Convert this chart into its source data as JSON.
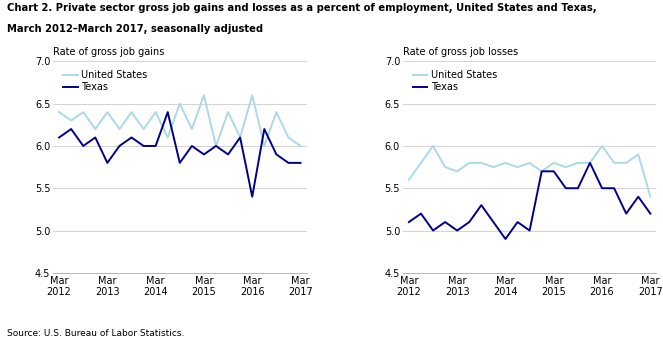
{
  "title_line1": "Chart 2. Private sector gross job gains and losses as a percent of employment, United States and Texas,",
  "title_line2": "March 2012–March 2017, seasonally adjusted",
  "source": "Source: U.S. Bureau of Labor Statistics.",
  "gains_us": [
    6.4,
    6.3,
    6.4,
    6.2,
    6.4,
    6.2,
    6.4,
    6.2,
    6.4,
    6.1,
    6.5,
    6.2,
    6.6,
    6.0,
    6.4,
    6.1,
    6.6,
    6.0,
    6.4,
    6.1,
    6.0
  ],
  "gains_tx": [
    6.1,
    6.2,
    6.0,
    6.1,
    5.8,
    6.0,
    6.1,
    6.0,
    6.0,
    6.4,
    5.8,
    6.0,
    5.9,
    6.0,
    5.9,
    6.1,
    5.4,
    6.2,
    5.9,
    5.8,
    5.8
  ],
  "losses_us": [
    5.6,
    5.8,
    6.0,
    5.75,
    5.7,
    5.8,
    5.8,
    5.75,
    5.8,
    5.75,
    5.8,
    5.7,
    5.8,
    5.75,
    5.8,
    5.8,
    6.0,
    5.8,
    5.8,
    5.9,
    5.4
  ],
  "losses_tx": [
    5.1,
    5.2,
    5.0,
    5.1,
    5.0,
    5.1,
    5.3,
    5.1,
    4.9,
    5.1,
    5.0,
    5.7,
    5.7,
    5.5,
    5.5,
    5.8,
    5.5,
    5.5,
    5.2,
    5.4,
    5.2
  ],
  "x_labels": [
    "Mar\n2012",
    "Mar\n2013",
    "Mar\n2014",
    "Mar\n2015",
    "Mar\n2016",
    "Mar\n2017"
  ],
  "x_tick_positions": [
    0,
    4,
    8,
    12,
    16,
    20
  ],
  "ylabel_gains": "Rate of gross job gains",
  "ylabel_losses": "Rate of gross job losses",
  "ylim": [
    4.5,
    7.0
  ],
  "yticks": [
    4.5,
    5.0,
    5.5,
    6.0,
    6.5,
    7.0
  ],
  "color_us": "#ADD8E6",
  "color_tx": "#00008B",
  "lw": 1.4,
  "bg_color": "#ffffff",
  "grid_color": "#cccccc"
}
